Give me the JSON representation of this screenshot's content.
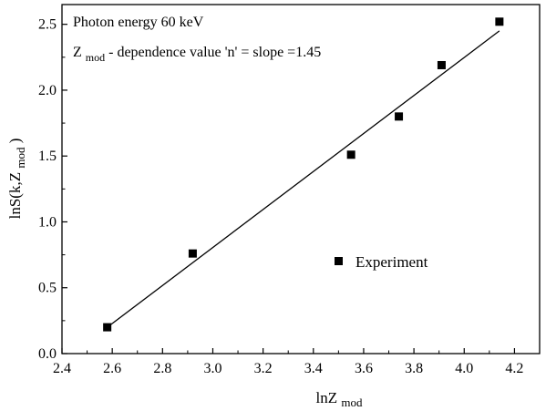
{
  "chart_data": {
    "type": "scatter",
    "x_axis": {
      "label_main": "lnZ",
      "label_sub": "mod",
      "range": [
        2.4,
        4.3
      ],
      "ticks": [
        2.4,
        2.6,
        2.8,
        3.0,
        3.2,
        3.4,
        3.6,
        3.8,
        4.0,
        4.2
      ],
      "tick_labels": [
        "2.4",
        "2.6",
        "2.8",
        "3.0",
        "3.2",
        "3.4",
        "3.6",
        "3.8",
        "4.0",
        "4.2"
      ]
    },
    "y_axis": {
      "label_main": "lnS(k,Z",
      "label_sub": "mod",
      "label_end": ")",
      "range": [
        0.0,
        2.65
      ],
      "ticks": [
        0.0,
        0.5,
        1.0,
        1.5,
        2.0,
        2.5
      ],
      "tick_labels": [
        "0.0",
        "0.5",
        "1.0",
        "1.5",
        "2.0",
        "2.5"
      ]
    },
    "series": [
      {
        "name": "Experiment",
        "marker": "square",
        "color": "#000000",
        "points": [
          {
            "x": 2.58,
            "y": 0.2
          },
          {
            "x": 2.92,
            "y": 0.76
          },
          {
            "x": 3.55,
            "y": 1.51
          },
          {
            "x": 3.74,
            "y": 1.8
          },
          {
            "x": 3.91,
            "y": 2.19
          },
          {
            "x": 4.14,
            "y": 2.52
          }
        ]
      }
    ],
    "fit_line": {
      "x0": 2.58,
      "y0": 0.2,
      "x1": 4.14,
      "y1": 2.45
    },
    "annotations": {
      "line1": "Photon energy 60 keV",
      "line2_main": "Z",
      "line2_sub": "mod",
      "line2_rest": " - dependence value 'n' = slope =1.45"
    },
    "legend": {
      "label": "Experiment",
      "position": "center-right"
    },
    "grid": false
  }
}
